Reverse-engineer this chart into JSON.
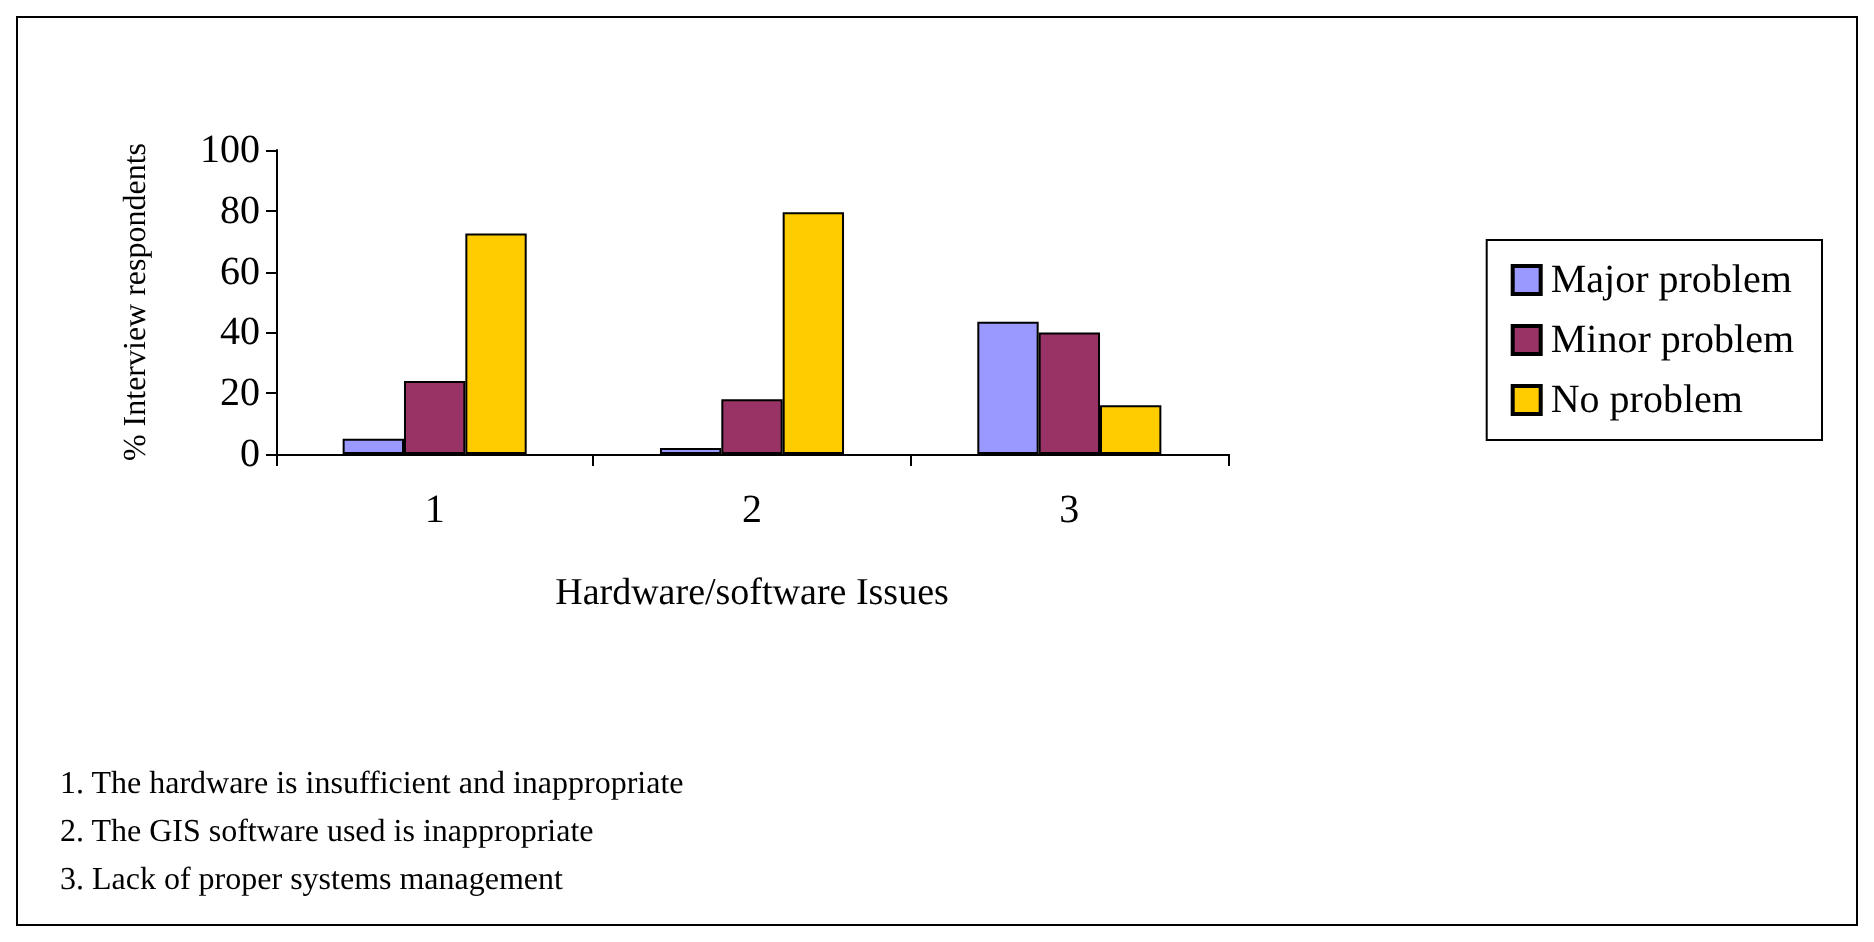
{
  "chart_data": {
    "type": "bar",
    "xlabel": "Hardware/software Issues",
    "ylabel": "% Interview respondents",
    "categories": [
      "1",
      "2",
      "3"
    ],
    "series": [
      {
        "name": "Major problem",
        "color": "#9999ff",
        "values": [
          5,
          2,
          43.5
        ]
      },
      {
        "name": "Minor problem",
        "color": "#993366",
        "values": [
          24,
          18,
          40
        ]
      },
      {
        "name": "No problem",
        "color": "#ffcc00",
        "values": [
          72.5,
          79.5,
          16
        ]
      }
    ],
    "ylim": [
      0,
      100
    ],
    "yticks": [
      0,
      20,
      40,
      60,
      80,
      100
    ],
    "grid": false,
    "legend": "right",
    "annotations": [
      "1. The hardware is insufficient and inappropriate",
      "2. The GIS software used is inappropriate",
      "3. Lack of proper systems management"
    ]
  }
}
